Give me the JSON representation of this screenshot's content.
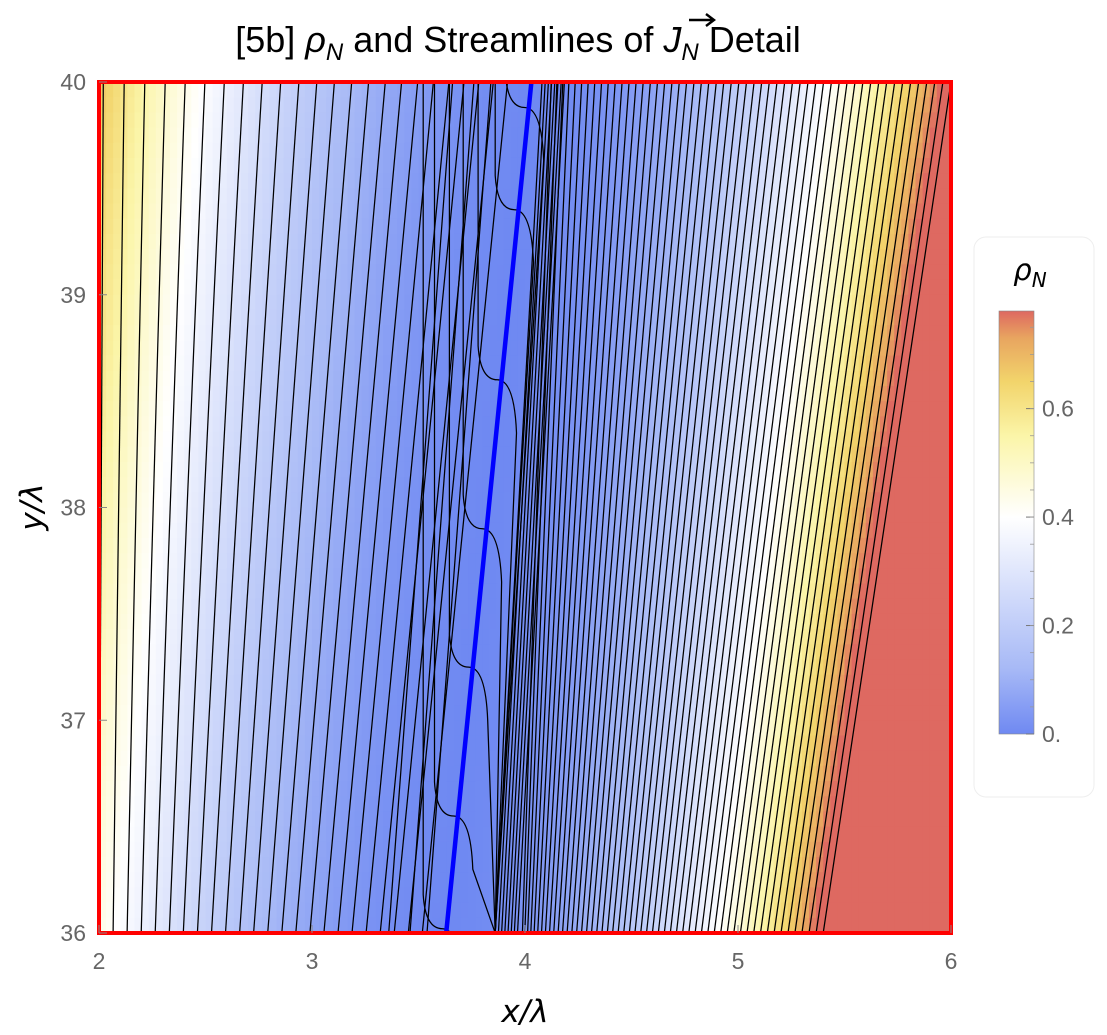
{
  "chart_data": {
    "type": "heatmap",
    "title_parts": {
      "prefix": "[5b] ",
      "rho": "ρ",
      "rho_sub": "N",
      "middle": " and Streamlines of ",
      "vec": "J",
      "vec_sub": "N",
      "suffix": " Detail"
    },
    "xlabel": "x/λ",
    "ylabel": "y/λ",
    "xlim": [
      2,
      6
    ],
    "ylim": [
      36,
      40
    ],
    "x_ticks": [
      2,
      3,
      4,
      5,
      6
    ],
    "y_ticks": [
      36,
      37,
      38,
      39,
      40
    ],
    "x_tick_labels": [
      "2",
      "3",
      "4",
      "5",
      "6"
    ],
    "y_tick_labels": [
      "36",
      "37",
      "38",
      "39",
      "40"
    ],
    "frame_color": "#ff0000",
    "node_line": {
      "color": "#0000ff",
      "points": [
        {
          "x": 3.63,
          "y": 36
        },
        {
          "x": 4.03,
          "y": 40
        }
      ]
    },
    "streamline_color": "#000000",
    "density_field": {
      "description_free": true,
      "node_x_at_y36": 3.63,
      "node_x_at_y40": 4.03,
      "min": 0.0,
      "max": 0.78
    },
    "colorbar": {
      "title": "ρ",
      "title_sub": "N",
      "range": [
        0.0,
        0.78
      ],
      "ticks": [
        0.0,
        0.2,
        0.4,
        0.6
      ],
      "tick_labels": [
        "0.",
        "0.2",
        "0.4",
        "0.6"
      ],
      "colors": [
        "#6f89f2",
        "#a7b9f6",
        "#ffffff",
        "#fbf5a8",
        "#f2d46b",
        "#e8a560",
        "#de6961"
      ],
      "stops": [
        0.0,
        0.12,
        0.4,
        0.55,
        0.65,
        0.73,
        0.78
      ]
    }
  }
}
